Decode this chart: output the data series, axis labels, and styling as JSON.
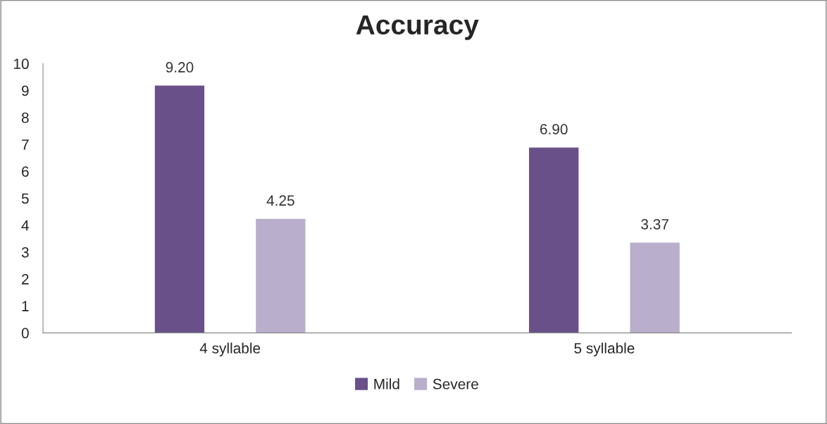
{
  "chart_data": {
    "type": "bar",
    "title": "Accuracy",
    "categories": [
      "4 syllable",
      "5 syllable"
    ],
    "series": [
      {
        "name": "Mild",
        "color": "#6a5088",
        "values": [
          9.2,
          6.9
        ],
        "value_labels": [
          "9.20",
          "6.90"
        ]
      },
      {
        "name": "Severe",
        "color": "#b9aecb",
        "values": [
          4.25,
          3.37
        ],
        "value_labels": [
          "4.25",
          "3.37"
        ]
      }
    ],
    "ylim": [
      0,
      10
    ],
    "yticks": [
      0,
      1,
      2,
      3,
      4,
      5,
      6,
      7,
      8,
      9,
      10
    ],
    "grid": false,
    "legend": "bottom"
  }
}
